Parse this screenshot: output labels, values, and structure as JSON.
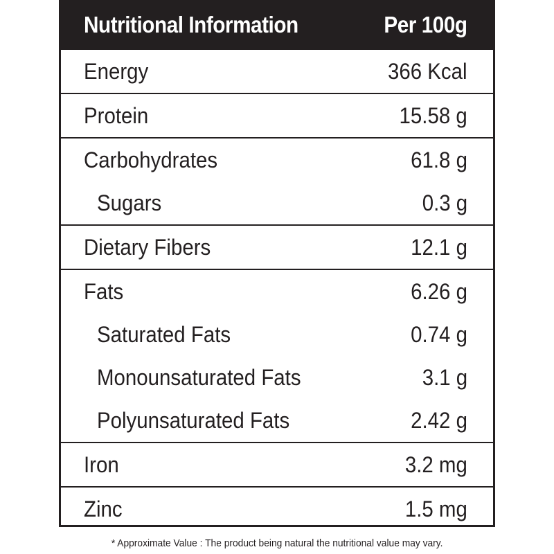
{
  "header": {
    "title": "Nutritional Information",
    "per": "Per 100g"
  },
  "groups": [
    {
      "rows": [
        {
          "label": "Energy",
          "value": "366 Kcal"
        }
      ]
    },
    {
      "rows": [
        {
          "label": "Protein",
          "value": "15.58 g"
        }
      ]
    },
    {
      "rows": [
        {
          "label": "Carbohydrates",
          "value": "61.8 g"
        },
        {
          "label": "Sugars",
          "value": "0.3 g"
        }
      ]
    },
    {
      "rows": [
        {
          "label": "Dietary Fibers",
          "value": "12.1 g"
        }
      ]
    },
    {
      "rows": [
        {
          "label": "Fats",
          "value": "6.26 g"
        },
        {
          "label": "Saturated Fats",
          "value": "0.74 g"
        },
        {
          "label": "Monounsaturated Fats",
          "value": "3.1 g"
        },
        {
          "label": "Polyunsaturated Fats",
          "value": "2.42 g"
        }
      ]
    },
    {
      "rows": [
        {
          "label": "Iron",
          "value": "3.2 mg"
        }
      ]
    },
    {
      "rows": [
        {
          "label": "Zinc",
          "value": "1.5 mg"
        }
      ]
    }
  ],
  "footnote": "* Approximate Value : The product being natural the nutritional value may vary."
}
